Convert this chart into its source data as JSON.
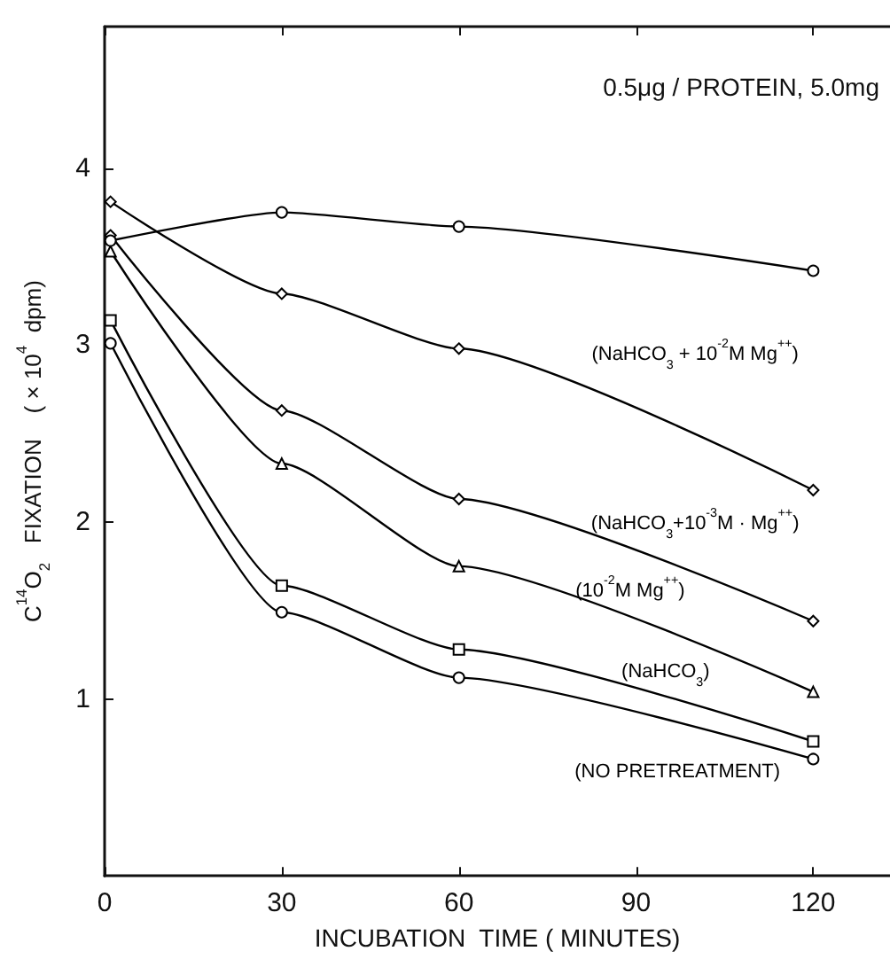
{
  "chart_data": {
    "type": "line",
    "xlabel": "INCUBATION  TIME ( MINUTES)",
    "ylabel": "C$^{14}$O$_{2}$   FIXATION    ( × 10$^{4}$  dpm)",
    "annotations": [
      "0.5μg / PROTEIN, 5.0mg"
    ],
    "xlim": [
      0,
      133
    ],
    "xticks": [
      0,
      30,
      60,
      90,
      120
    ],
    "ylim": [
      0,
      4.8
    ],
    "yticks": [
      1,
      2,
      3,
      4
    ],
    "grid": false,
    "legend": false,
    "line_style": "solid",
    "series": [
      {
        "color": "#000000",
        "marker": "circle",
        "x": [
          1,
          30,
          60,
          120
        ],
        "values": [
          3.59,
          3.75,
          3.67,
          3.42
        ]
      },
      {
        "name": "(NaHCO$_{3}$ + 10$^{-2}$M Mg$^{++}$)",
        "color": "#000000",
        "marker": "diamond",
        "x": [
          1,
          30,
          60,
          120
        ],
        "values": [
          3.81,
          3.29,
          2.98,
          2.18
        ]
      },
      {
        "name": "(NaHCO$_{3}$+10$^{-3}$M · Mg$^{++}$)",
        "color": "#000000",
        "marker": "diamond",
        "x": [
          1,
          30,
          60,
          120
        ],
        "values": [
          3.62,
          2.63,
          2.13,
          1.44
        ]
      },
      {
        "name": "(10$^{-2}$M Mg$^{++}$)",
        "color": "#000000",
        "marker": "triangle",
        "x": [
          1,
          30,
          60,
          120
        ],
        "values": [
          3.53,
          2.33,
          1.75,
          1.04
        ]
      },
      {
        "name": "(NaHCO$_{3}$)",
        "color": "#000000",
        "marker": "square",
        "x": [
          1,
          30,
          60,
          120
        ],
        "values": [
          3.14,
          1.64,
          1.28,
          0.76
        ]
      },
      {
        "name": "(NO PRETREATMENT)",
        "color": "#000000",
        "marker": "circle",
        "x": [
          1,
          30,
          60,
          120
        ],
        "values": [
          3.01,
          1.49,
          1.12,
          0.66
        ]
      }
    ]
  }
}
